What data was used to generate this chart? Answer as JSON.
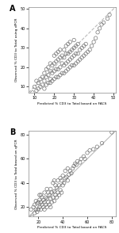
{
  "panel_A": {
    "label": "A",
    "xlabel": "Predicted % CD3 to Total based on FACS",
    "ylabel": "Observed % CD3 to Total using dPCR",
    "xlim": [
      7,
      51
    ],
    "ylim": [
      7,
      51
    ],
    "xticks": [
      10,
      20,
      30,
      40,
      50
    ],
    "yticks": [
      10,
      20,
      30,
      40,
      50
    ],
    "scatter_x": [
      9,
      10,
      11,
      11,
      12,
      12,
      13,
      13,
      14,
      14,
      15,
      15,
      15,
      16,
      16,
      16,
      17,
      17,
      17,
      18,
      18,
      18,
      18,
      19,
      19,
      19,
      20,
      20,
      20,
      20,
      21,
      21,
      21,
      21,
      22,
      22,
      22,
      22,
      23,
      23,
      23,
      23,
      24,
      24,
      24,
      25,
      25,
      25,
      25,
      26,
      26,
      26,
      26,
      27,
      27,
      27,
      27,
      28,
      28,
      28,
      28,
      29,
      29,
      29,
      30,
      30,
      30,
      30,
      31,
      31,
      31,
      32,
      32,
      32,
      33,
      33,
      34,
      34,
      35,
      35,
      36,
      36,
      37,
      38,
      39,
      40,
      41,
      42,
      43,
      44,
      45,
      47,
      48
    ],
    "scatter_y": [
      7,
      10,
      8,
      13,
      9,
      12,
      10,
      14,
      11,
      15,
      9,
      13,
      17,
      11,
      15,
      19,
      12,
      16,
      20,
      12,
      14,
      18,
      22,
      13,
      17,
      21,
      14,
      18,
      22,
      26,
      15,
      19,
      23,
      27,
      15,
      19,
      24,
      28,
      16,
      20,
      25,
      29,
      17,
      22,
      26,
      17,
      21,
      25,
      29,
      18,
      22,
      27,
      31,
      19,
      23,
      27,
      32,
      20,
      24,
      28,
      33,
      21,
      25,
      29,
      21,
      26,
      30,
      34,
      22,
      27,
      31,
      23,
      27,
      32,
      24,
      29,
      25,
      30,
      26,
      31,
      27,
      32,
      28,
      29,
      31,
      33,
      35,
      38,
      40,
      42,
      43,
      45,
      47
    ]
  },
  "panel_B": {
    "label": "B",
    "xlabel": "Predicted % CD3 to Total based on FACS",
    "ylabel": "Observed % CD3 to Total based on qPCR",
    "xlim": [
      12,
      83
    ],
    "ylim": [
      12,
      83
    ],
    "xticks": [
      20,
      40,
      60,
      80
    ],
    "yticks": [
      20,
      40,
      60,
      80
    ],
    "scatter_x": [
      14,
      15,
      16,
      17,
      17,
      18,
      18,
      19,
      19,
      20,
      20,
      21,
      21,
      21,
      22,
      22,
      22,
      23,
      23,
      24,
      24,
      25,
      25,
      25,
      26,
      26,
      27,
      27,
      27,
      28,
      28,
      29,
      29,
      30,
      30,
      30,
      31,
      31,
      32,
      32,
      33,
      33,
      33,
      34,
      34,
      35,
      35,
      36,
      36,
      37,
      37,
      38,
      38,
      39,
      39,
      40,
      40,
      41,
      42,
      42,
      43,
      44,
      44,
      45,
      46,
      47,
      48,
      49,
      50,
      51,
      52,
      54,
      55,
      57,
      58,
      60,
      62,
      65,
      68,
      72,
      80
    ],
    "scatter_y": [
      18,
      12,
      20,
      15,
      22,
      18,
      25,
      16,
      23,
      18,
      24,
      20,
      26,
      30,
      18,
      24,
      30,
      22,
      28,
      20,
      26,
      18,
      24,
      32,
      22,
      28,
      20,
      27,
      35,
      24,
      32,
      22,
      30,
      20,
      27,
      35,
      24,
      32,
      40,
      28,
      25,
      33,
      42,
      30,
      38,
      28,
      36,
      32,
      42,
      30,
      38,
      34,
      44,
      32,
      42,
      38,
      46,
      40,
      44,
      50,
      45,
      42,
      52,
      47,
      50,
      48,
      52,
      54,
      56,
      55,
      58,
      57,
      60,
      62,
      60,
      65,
      67,
      68,
      70,
      73,
      82
    ]
  },
  "line_color": "#bbbbbb",
  "marker_color": "none",
  "marker_edge_color": "#777777",
  "marker_size": 3.2,
  "background_color": "#ffffff",
  "figure_bg": "#ffffff",
  "panel_A_linestyle": "--",
  "panel_B_linestyle": "-"
}
